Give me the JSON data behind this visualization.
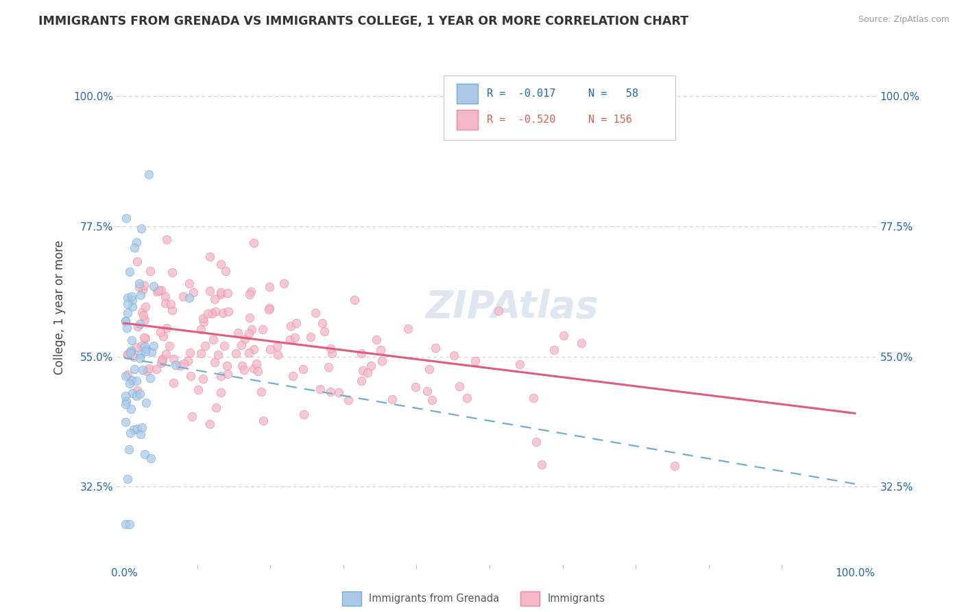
{
  "title": "IMMIGRANTS FROM GRENADA VS IMMIGRANTS COLLEGE, 1 YEAR OR MORE CORRELATION CHART",
  "source_text": "Source: ZipAtlas.com",
  "ylabel": "College, 1 year or more",
  "y_tick_positions": [
    0.325,
    0.55,
    0.775,
    1.0
  ],
  "y_tick_labels": [
    "32.5%",
    "55.0%",
    "77.5%",
    "100.0%"
  ],
  "x_tick_labels": [
    "0.0%",
    "100.0%"
  ],
  "color_blue_fill": "#aec9e8",
  "color_blue_edge": "#6baed6",
  "color_pink_fill": "#f4b8c8",
  "color_pink_edge": "#e8899e",
  "color_pink_line": "#e05c7a",
  "color_blue_line": "#6baed6",
  "color_text_blue": "#2166ac",
  "color_text_pink": "#d6604d",
  "color_grid": "#cccccc",
  "watermark": "ZIPAtlas",
  "watermark_color": "#c8d8e8",
  "legend_r1": "R = -0.017",
  "legend_n1": "N =  58",
  "legend_r2": "R = -0.520",
  "legend_n2": "N = 156",
  "pink_line_x0": 0.0,
  "pink_line_x1": 1.0,
  "pink_line_y0": 0.608,
  "pink_line_y1": 0.452,
  "blue_line_x0": 0.0,
  "blue_line_x1": 1.0,
  "blue_line_y0": 0.548,
  "blue_line_y1": 0.33,
  "xlim_min": -0.01,
  "xlim_max": 1.03,
  "ylim_min": 0.19,
  "ylim_max": 1.08
}
